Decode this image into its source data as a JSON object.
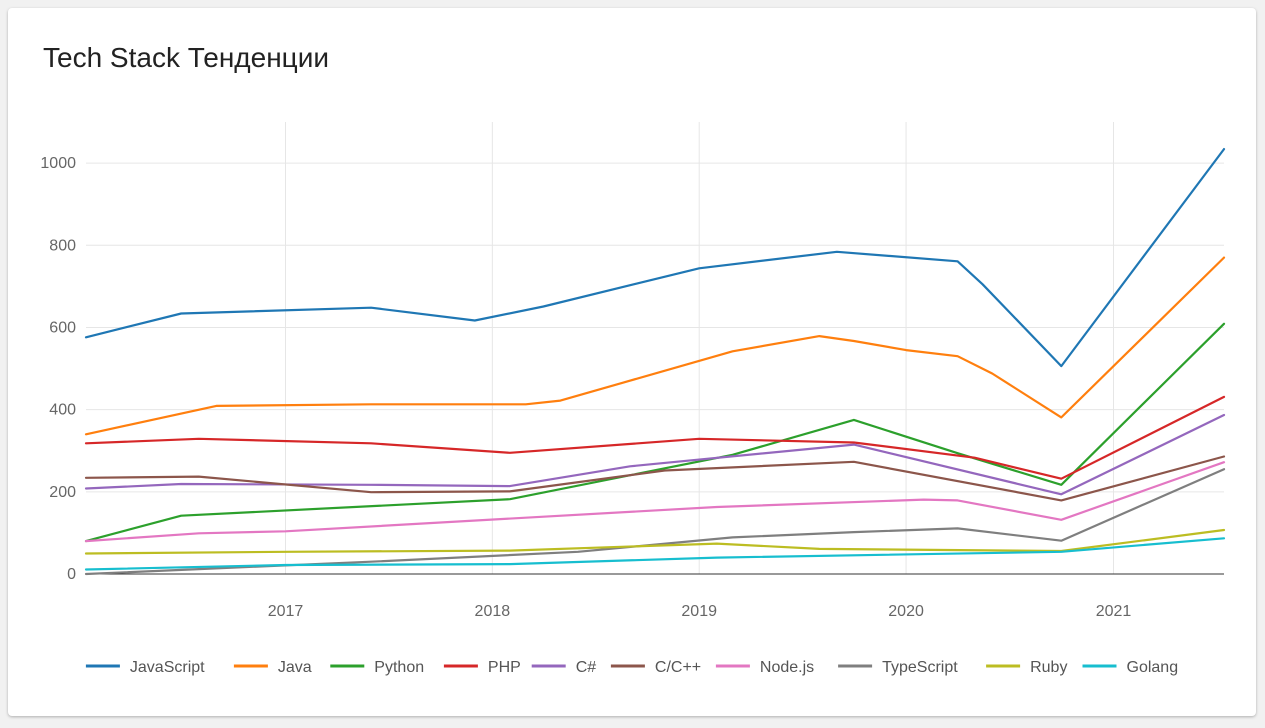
{
  "card": {
    "title": "Tech Stack Тенденции"
  },
  "chart_data": {
    "type": "line",
    "title": "Tech Stack Тенденции",
    "xlabel": "",
    "ylabel": "",
    "x_ticks": [
      "2017",
      "2018",
      "2019",
      "2020",
      "2021"
    ],
    "y_ticks": [
      0,
      200,
      400,
      600,
      800,
      1000
    ],
    "xlim": [
      "2016-01-15",
      "2021-07-15"
    ],
    "ylim": [
      0,
      1100
    ],
    "grid": true,
    "legend": "bottom",
    "series": [
      {
        "name": "JavaScript",
        "color": "#1f77b4",
        "points": [
          [
            "2016-01-15",
            576
          ],
          [
            "2016-07-01",
            634
          ],
          [
            "2017-06-01",
            648
          ],
          [
            "2017-12-01",
            617
          ],
          [
            "2018-04-01",
            651
          ],
          [
            "2019-01-01",
            744
          ],
          [
            "2019-09-01",
            784
          ],
          [
            "2020-04-01",
            761
          ],
          [
            "2020-05-15",
            705
          ],
          [
            "2020-10-01",
            506
          ],
          [
            "2021-07-15",
            1034
          ]
        ]
      },
      {
        "name": "Java",
        "color": "#ff7f0e",
        "points": [
          [
            "2016-01-15",
            340
          ],
          [
            "2016-09-01",
            409
          ],
          [
            "2017-06-01",
            413
          ],
          [
            "2018-03-01",
            413
          ],
          [
            "2018-05-01",
            422
          ],
          [
            "2019-03-01",
            542
          ],
          [
            "2019-08-01",
            579
          ],
          [
            "2019-10-01",
            567
          ],
          [
            "2020-01-01",
            545
          ],
          [
            "2020-04-01",
            530
          ],
          [
            "2020-06-01",
            488
          ],
          [
            "2020-10-01",
            381
          ],
          [
            "2021-07-15",
            770
          ]
        ]
      },
      {
        "name": "Python",
        "color": "#2ca02c",
        "points": [
          [
            "2016-01-15",
            80
          ],
          [
            "2016-07-01",
            142
          ],
          [
            "2018-02-01",
            182
          ],
          [
            "2019-03-01",
            290
          ],
          [
            "2019-10-01",
            375
          ],
          [
            "2020-04-01",
            294
          ],
          [
            "2020-10-01",
            217
          ],
          [
            "2021-07-15",
            609
          ]
        ]
      },
      {
        "name": "PHP",
        "color": "#d62728",
        "points": [
          [
            "2016-01-15",
            318
          ],
          [
            "2016-08-01",
            329
          ],
          [
            "2017-06-01",
            318
          ],
          [
            "2018-02-01",
            295
          ],
          [
            "2019-01-01",
            329
          ],
          [
            "2019-10-01",
            320
          ],
          [
            "2020-05-01",
            283
          ],
          [
            "2020-10-01",
            232
          ],
          [
            "2021-07-15",
            431
          ]
        ]
      },
      {
        "name": "C#",
        "color": "#9467bd",
        "points": [
          [
            "2016-01-15",
            208
          ],
          [
            "2016-07-01",
            219
          ],
          [
            "2017-06-01",
            217
          ],
          [
            "2018-02-01",
            214
          ],
          [
            "2018-09-01",
            262
          ],
          [
            "2019-10-01",
            315
          ],
          [
            "2020-10-01",
            194
          ],
          [
            "2021-07-15",
            387
          ]
        ]
      },
      {
        "name": "C/C++",
        "color": "#8c564b",
        "points": [
          [
            "2016-01-15",
            234
          ],
          [
            "2016-08-01",
            237
          ],
          [
            "2017-06-01",
            199
          ],
          [
            "2018-02-01",
            201
          ],
          [
            "2018-11-01",
            252
          ],
          [
            "2019-10-01",
            273
          ],
          [
            "2020-10-01",
            179
          ],
          [
            "2021-07-15",
            286
          ]
        ]
      },
      {
        "name": "Node.js",
        "color": "#e377c2",
        "points": [
          [
            "2016-01-15",
            80
          ],
          [
            "2016-08-01",
            99
          ],
          [
            "2017-01-01",
            104
          ],
          [
            "2018-03-01",
            137
          ],
          [
            "2019-02-01",
            163
          ],
          [
            "2020-02-01",
            181
          ],
          [
            "2020-04-01",
            179
          ],
          [
            "2020-10-01",
            132
          ],
          [
            "2021-07-15",
            272
          ]
        ]
      },
      {
        "name": "TypeScript",
        "color": "#7f7f7f",
        "points": [
          [
            "2016-01-15",
            0
          ],
          [
            "2016-08-01",
            12
          ],
          [
            "2017-06-01",
            30
          ],
          [
            "2018-06-01",
            54
          ],
          [
            "2019-03-01",
            89
          ],
          [
            "2019-10-01",
            102
          ],
          [
            "2020-04-01",
            111
          ],
          [
            "2020-10-01",
            81
          ],
          [
            "2021-07-15",
            255
          ]
        ]
      },
      {
        "name": "Ruby",
        "color": "#bcbd22",
        "points": [
          [
            "2016-01-15",
            50
          ],
          [
            "2017-01-01",
            54
          ],
          [
            "2018-02-01",
            57
          ],
          [
            "2019-02-01",
            74
          ],
          [
            "2019-08-01",
            61
          ],
          [
            "2020-10-01",
            56
          ],
          [
            "2021-07-15",
            107
          ]
        ]
      },
      {
        "name": "Golang",
        "color": "#17becf",
        "points": [
          [
            "2016-01-15",
            11
          ],
          [
            "2017-01-01",
            22
          ],
          [
            "2018-02-01",
            24
          ],
          [
            "2019-02-01",
            40
          ],
          [
            "2020-10-01",
            54
          ],
          [
            "2021-07-15",
            87
          ]
        ]
      }
    ]
  }
}
